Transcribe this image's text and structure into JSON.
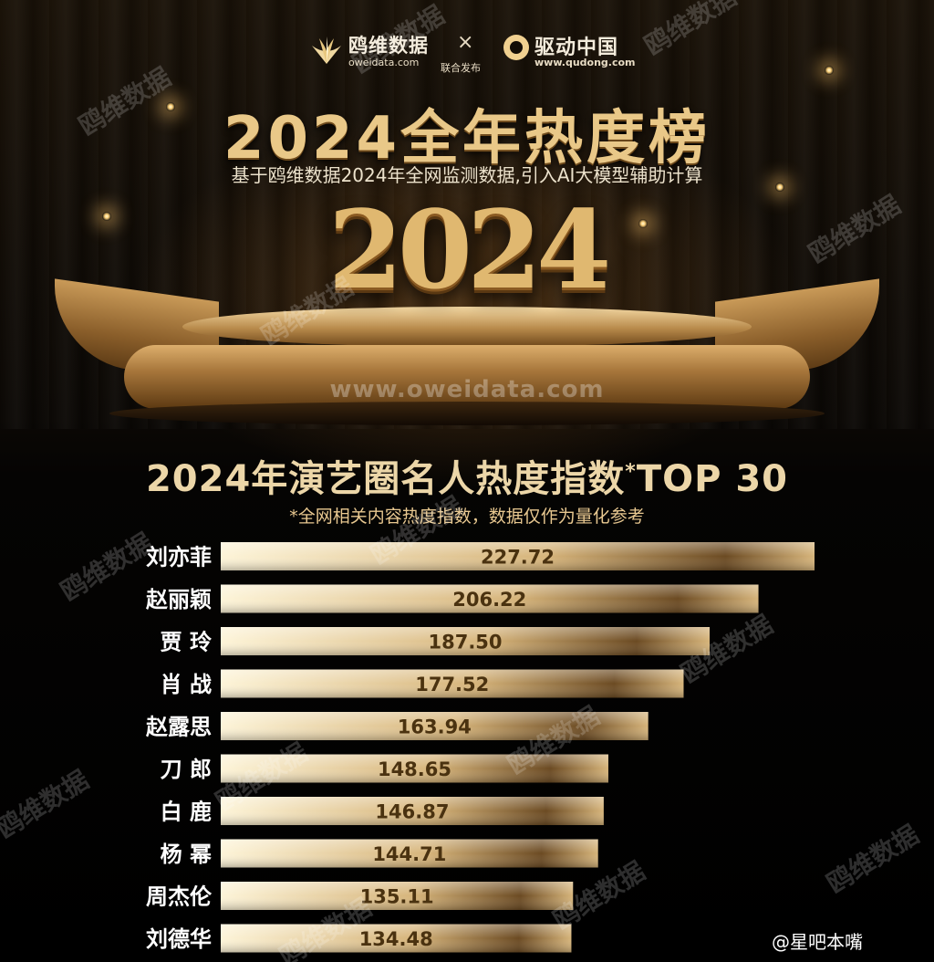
{
  "header": {
    "brand1_name": "鸥维数据",
    "brand1_url": "oweidata.com",
    "separator": "×",
    "joint_release": "联合发布",
    "brand2_name": "驱动中国",
    "brand2_url": "www.qudong.com"
  },
  "hero": {
    "title": "2024全年热度榜",
    "subtitle": "基于鸥维数据2024年全网监测数据,引入AI大模型辅助计算",
    "year": "2024",
    "site_watermark": "www.oweidata.com"
  },
  "watermark_text": "鸥维数据",
  "weibo_handle": "@星吧本嘴",
  "colors": {
    "bar_light": "#fdf4d8",
    "bar_mid": "#d6b47a",
    "bar_dark": "#6b4a22",
    "label": "#ffffff",
    "value": "#4a3210"
  },
  "chart_data": {
    "type": "bar",
    "orientation": "horizontal",
    "title": "2024年演艺圈名人热度指数",
    "title_suffix": "TOP 30",
    "note": "*全网相关内容热度指数，数据仅作为量化参考",
    "categories": [
      "刘亦菲",
      "赵丽颖",
      "贾 玲",
      "肖 战",
      "赵露思",
      "刀 郎",
      "白 鹿",
      "杨 幂",
      "周杰伦",
      "刘德华"
    ],
    "values": [
      227.72,
      206.22,
      187.5,
      177.52,
      163.94,
      148.65,
      146.87,
      144.71,
      135.11,
      134.48
    ],
    "value_labels": [
      "227.72",
      "206.22",
      "187.50",
      "177.52",
      "163.94",
      "148.65",
      "146.87",
      "144.71",
      "135.11",
      "134.48"
    ],
    "xlim": [
      0,
      227.72
    ]
  }
}
